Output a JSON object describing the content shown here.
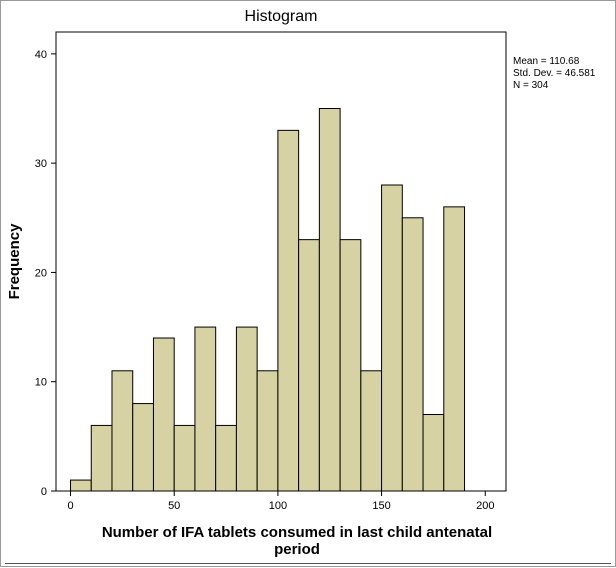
{
  "chart_data": {
    "type": "bar",
    "title": "Histogram",
    "xlabel": "Number of IFA tablets consumed in last child antenatal period",
    "xlabel_lines": [
      "Number of IFA tablets consumed in last child antenatal",
      "period"
    ],
    "ylabel": "Frequency",
    "xlim": [
      -7,
      210
    ],
    "ylim": [
      0,
      42
    ],
    "x_ticks": [
      0,
      50,
      100,
      150,
      200
    ],
    "y_ticks": [
      0,
      10,
      20,
      30,
      40
    ],
    "bin_width": 10,
    "bins": [
      {
        "start": 0,
        "end": 10,
        "value": 1
      },
      {
        "start": 10,
        "end": 20,
        "value": 6
      },
      {
        "start": 20,
        "end": 30,
        "value": 11
      },
      {
        "start": 30,
        "end": 40,
        "value": 8
      },
      {
        "start": 40,
        "end": 50,
        "value": 14
      },
      {
        "start": 50,
        "end": 60,
        "value": 6
      },
      {
        "start": 60,
        "end": 70,
        "value": 15
      },
      {
        "start": 70,
        "end": 80,
        "value": 6
      },
      {
        "start": 80,
        "end": 90,
        "value": 15
      },
      {
        "start": 90,
        "end": 100,
        "value": 11
      },
      {
        "start": 100,
        "end": 110,
        "value": 33
      },
      {
        "start": 110,
        "end": 120,
        "value": 23
      },
      {
        "start": 120,
        "end": 130,
        "value": 35
      },
      {
        "start": 130,
        "end": 140,
        "value": 23
      },
      {
        "start": 140,
        "end": 150,
        "value": 11
      },
      {
        "start": 150,
        "end": 160,
        "value": 28
      },
      {
        "start": 160,
        "end": 170,
        "value": 25
      },
      {
        "start": 170,
        "end": 180,
        "value": 7
      },
      {
        "start": 180,
        "end": 190,
        "value": 26
      }
    ],
    "stats": {
      "mean": "Mean = 110.68",
      "std_dev": "Std. Dev. = 46.581",
      "n": "N = 304"
    },
    "colors": {
      "bar_fill": "#d6d2a4",
      "bar_stroke": "#000000",
      "plot_bg": "#ffffff"
    }
  }
}
